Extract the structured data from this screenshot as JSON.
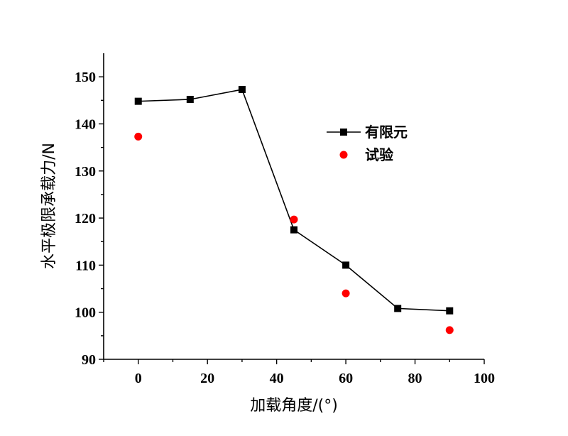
{
  "chart_data": {
    "type": "line",
    "xlabel": "加载角度/(°)",
    "ylabel": "水平极限承载力/N",
    "xlim": [
      -10,
      100
    ],
    "ylim": [
      90,
      155
    ],
    "xticks": [
      0,
      20,
      40,
      60,
      80,
      100
    ],
    "yticks": [
      90,
      100,
      110,
      120,
      130,
      140,
      150
    ],
    "legend_position": "top-right",
    "series": [
      {
        "name": "有限元",
        "kind": "line-with-square-markers",
        "color": "#000000",
        "x": [
          0,
          15,
          30,
          45,
          60,
          75,
          90
        ],
        "y": [
          144.8,
          145.2,
          147.3,
          117.5,
          110.0,
          100.8,
          100.3
        ]
      },
      {
        "name": "试验",
        "kind": "scatter-circle",
        "color": "#ff0000",
        "x": [
          0,
          45,
          60,
          90
        ],
        "y": [
          137.3,
          119.7,
          104.0,
          96.2
        ]
      }
    ]
  }
}
